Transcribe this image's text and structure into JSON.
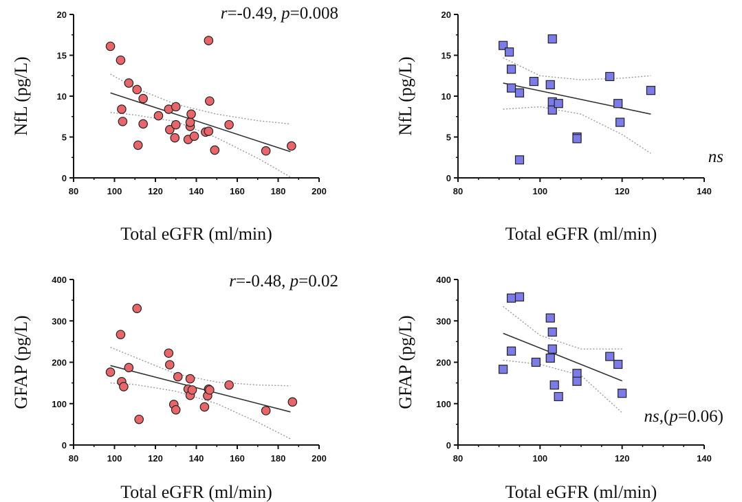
{
  "chart_data": [
    {
      "type": "scatter",
      "marker": "circle",
      "marker_color": "#e8666a",
      "xlabel": "Total eGFR (ml/min)",
      "ylabel": "NfL (pg/L)",
      "xlim": [
        80,
        200
      ],
      "ylim": [
        0,
        20
      ],
      "xticks": [
        "80",
        "100",
        "120",
        "140",
        "160",
        "180",
        "200"
      ],
      "yticks": [
        "0",
        "5",
        "10",
        "15",
        "20"
      ],
      "annotation": [
        "r",
        "=-0.49, ",
        "p",
        "=0.008"
      ],
      "fit_line": {
        "x": [
          98,
          186
        ],
        "y": [
          10.4,
          3.2
        ]
      },
      "ci_upper": {
        "x": [
          98,
          110,
          130,
          150,
          170,
          186
        ],
        "y": [
          12.7,
          11.0,
          9.0,
          7.8,
          7.0,
          6.6
        ]
      },
      "ci_lower": {
        "x": [
          98,
          110,
          130,
          150,
          170,
          186
        ],
        "y": [
          8.0,
          7.7,
          6.9,
          4.9,
          2.4,
          0.1
        ]
      },
      "points": {
        "x": [
          98,
          103,
          103.5,
          104,
          107,
          111,
          111.5,
          114,
          114,
          121.5,
          126.5,
          127,
          129.5,
          130,
          130,
          136,
          137,
          137,
          137.5,
          139,
          144.5,
          146,
          146.5,
          146,
          149,
          156,
          174,
          186.5
        ],
        "y": [
          16.1,
          14.4,
          8.4,
          6.9,
          11.6,
          10.8,
          4.0,
          9.7,
          6.6,
          7.6,
          8.4,
          5.9,
          4.9,
          6.5,
          8.7,
          4.7,
          6.3,
          6.8,
          7.8,
          5.1,
          5.6,
          16.8,
          9.4,
          5.7,
          3.4,
          6.5,
          3.3,
          3.9
        ]
      }
    },
    {
      "type": "scatter",
      "marker": "square",
      "marker_color": "#7b7bea",
      "xlabel": "Total eGFR (ml/min)",
      "ylabel": "NfL (pg/L)",
      "xlim": [
        80,
        140
      ],
      "ylim": [
        0,
        20
      ],
      "xticks": [
        "80",
        "100",
        "120",
        "140"
      ],
      "yticks": [
        "0",
        "5",
        "10",
        "15",
        "20"
      ],
      "annotation": [
        "ns"
      ],
      "fit_line": {
        "x": [
          91,
          127
        ],
        "y": [
          11.6,
          7.8
        ]
      },
      "ci_upper": {
        "x": [
          91,
          100,
          110,
          120,
          127
        ],
        "y": [
          14.7,
          12.5,
          12.0,
          12.2,
          12.5
        ]
      },
      "ci_lower": {
        "x": [
          91,
          100,
          110,
          120,
          127
        ],
        "y": [
          8.4,
          8.7,
          7.8,
          5.3,
          3.0
        ]
      },
      "points": {
        "x": [
          91,
          92.5,
          93,
          93,
          95,
          95,
          98.5,
          102.5,
          103,
          103,
          103,
          104.5,
          109,
          109,
          117,
          119,
          119.5,
          127
        ],
        "y": [
          16.2,
          15.4,
          13.3,
          11.0,
          10.4,
          2.2,
          11.8,
          11.4,
          9.3,
          8.3,
          17.0,
          9.1,
          5.0,
          4.8,
          12.4,
          9.1,
          6.8,
          10.7
        ]
      }
    },
    {
      "type": "scatter",
      "marker": "circle",
      "marker_color": "#e8666a",
      "xlabel": "Total eGFR (ml/min)",
      "ylabel": "GFAP (pg/L)",
      "xlim": [
        80,
        200
      ],
      "ylim": [
        0,
        400
      ],
      "xticks": [
        "80",
        "100",
        "120",
        "140",
        "160",
        "180",
        "200"
      ],
      "yticks": [
        "0",
        "100",
        "200",
        "300",
        "400"
      ],
      "annotation": [
        "r",
        "=-0.48, ",
        "p",
        "=0.02"
      ],
      "fit_line": {
        "x": [
          98,
          186
        ],
        "y": [
          192,
          80
        ]
      },
      "ci_upper": {
        "x": [
          98,
          110,
          130,
          150,
          170,
          186
        ],
        "y": [
          236,
          212,
          172,
          152,
          145,
          143
        ]
      },
      "ci_lower": {
        "x": [
          98,
          110,
          130,
          150,
          170,
          186
        ],
        "y": [
          150,
          146,
          130,
          100,
          55,
          15
        ]
      },
      "points": {
        "x": [
          98,
          103,
          103.5,
          104.5,
          107,
          111,
          112,
          126.5,
          127,
          129,
          130,
          131,
          136,
          137,
          137,
          138,
          144,
          145.5,
          146,
          146.5,
          156,
          174,
          187
        ],
        "y": [
          176,
          267,
          153,
          141,
          187,
          330,
          62,
          222,
          194,
          98,
          85,
          165,
          135,
          160,
          120,
          133,
          92,
          119,
          135,
          133,
          145,
          83,
          104
        ]
      }
    },
    {
      "type": "scatter",
      "marker": "square",
      "marker_color": "#7b7bea",
      "xlabel": "Total eGFR (ml/min)",
      "ylabel": "GFAP (pg/L)",
      "xlim": [
        80,
        140
      ],
      "ylim": [
        0,
        400
      ],
      "xticks": [
        "80",
        "100",
        "120",
        "140"
      ],
      "yticks": [
        "0",
        "100",
        "200",
        "300",
        "400"
      ],
      "annotation": [
        "ns",
        ",(",
        "p",
        "=0.06)"
      ],
      "fit_line": {
        "x": [
          91,
          120
        ],
        "y": [
          270,
          155
        ]
      },
      "ci_upper": {
        "x": [
          91,
          100,
          110,
          120
        ],
        "y": [
          335,
          265,
          232,
          232
        ]
      },
      "ci_lower": {
        "x": [
          91,
          100,
          110,
          120
        ],
        "y": [
          205,
          195,
          168,
          78
        ]
      },
      "points": {
        "x": [
          91,
          93,
          93,
          95,
          99,
          102.5,
          103,
          103,
          102.5,
          103.5,
          104.5,
          109,
          109,
          117,
          119,
          120
        ],
        "y": [
          183,
          355,
          227,
          358,
          200,
          307,
          273,
          232,
          210,
          145,
          117,
          173,
          154,
          214,
          195,
          125
        ]
      }
    }
  ]
}
